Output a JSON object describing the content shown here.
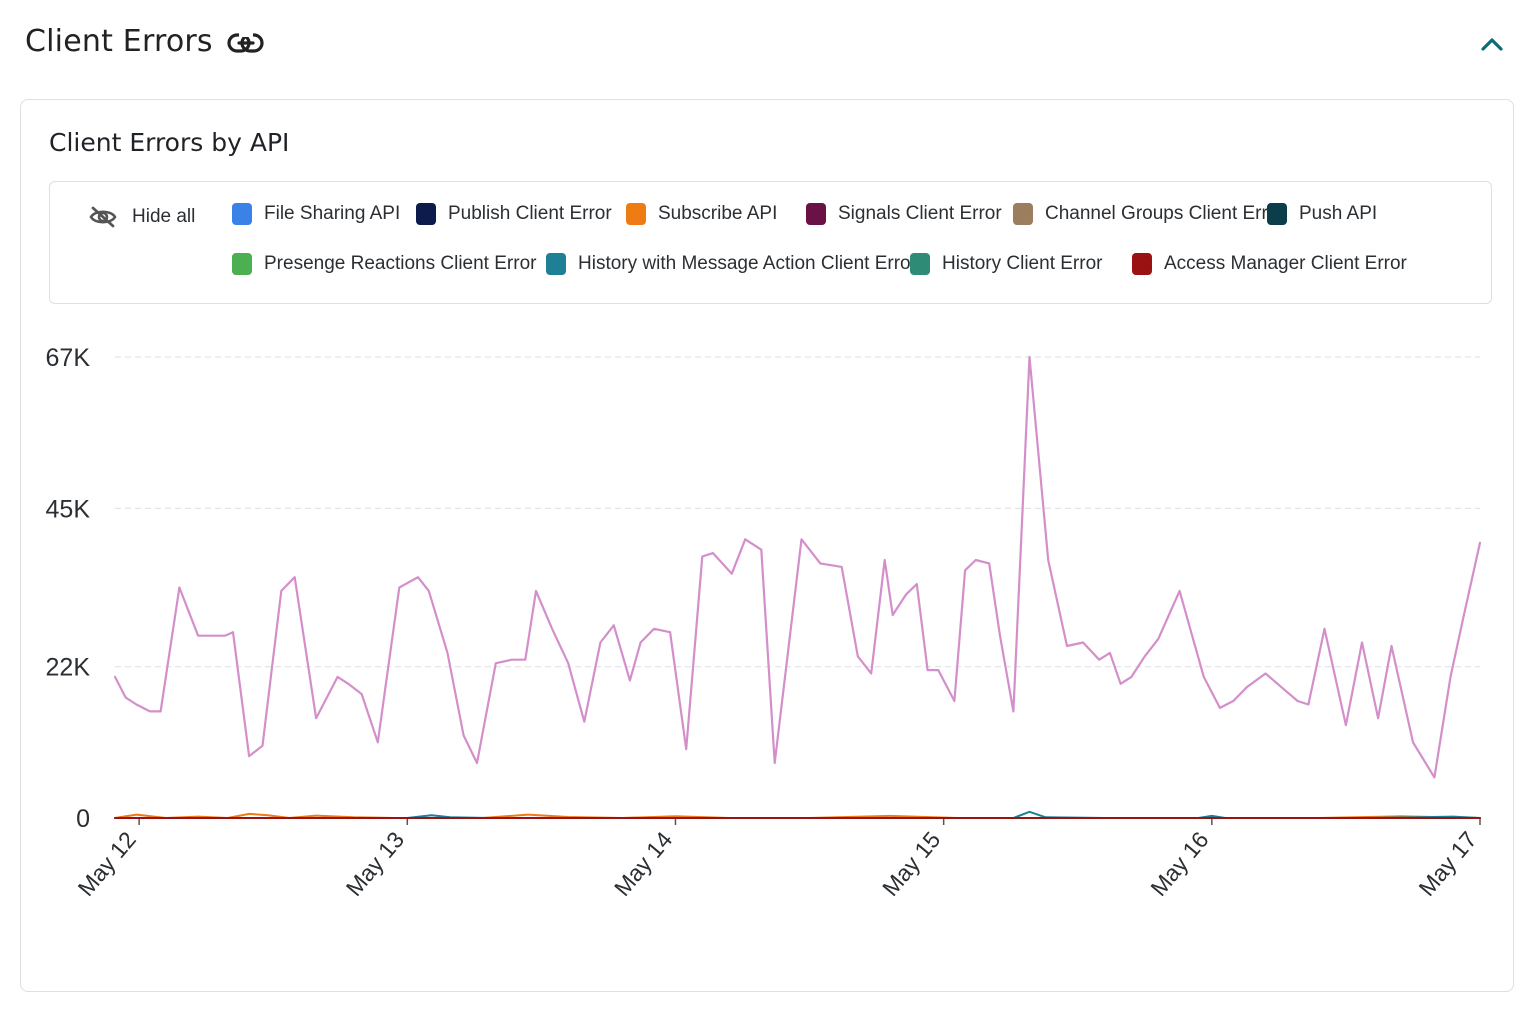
{
  "header": {
    "title": "Client Errors",
    "link_icon": "link-icon",
    "collapse_icon": "chevron-up-icon"
  },
  "card": {
    "title": "Client Errors by API"
  },
  "legend": {
    "hide_all_label": "Hide all",
    "hide_all_icon": "eye-off-icon",
    "items": [
      {
        "label": "File Sharing API",
        "color": "#3b82e8"
      },
      {
        "label": "Publish Client Error",
        "color": "#0d1b4c"
      },
      {
        "label": "Subscribe API",
        "color": "#ee7b14"
      },
      {
        "label": "Signals Client Error",
        "color": "#6a1145"
      },
      {
        "label": "Channel Groups Client Error",
        "color": "#9a7e5e"
      },
      {
        "label": "Push API",
        "color": "#0b3d4a"
      },
      {
        "label": "Presenge Reactions Client Error",
        "color": "#4caf50"
      },
      {
        "label": "History with Message Action Client Error",
        "color": "#1f7f95"
      },
      {
        "label": "History Client Error",
        "color": "#2e8b75"
      },
      {
        "label": "Access Manager Client Error",
        "color": "#9b1212"
      }
    ]
  },
  "chart_data": {
    "type": "line",
    "title": "Client Errors by API",
    "xlabel": "",
    "ylabel": "",
    "ylim": [
      0,
      67000
    ],
    "y_ticks": [
      {
        "value": 0,
        "label": "0"
      },
      {
        "value": 22000,
        "label": "22K"
      },
      {
        "value": 45000,
        "label": "45K"
      },
      {
        "value": 67000,
        "label": "67K"
      }
    ],
    "x_range": [
      11.91,
      17.0
    ],
    "x_ticks": [
      {
        "value": 12,
        "label": "May 12"
      },
      {
        "value": 13,
        "label": "May 13"
      },
      {
        "value": 14,
        "label": "May 14"
      },
      {
        "value": 15,
        "label": "May 15"
      },
      {
        "value": 16,
        "label": "May 16"
      },
      {
        "value": 17,
        "label": "May 17"
      }
    ],
    "grid": true,
    "legend_position": "top",
    "series": [
      {
        "color": "#d48fca",
        "x": [
          11.91,
          11.95,
          11.99,
          12.04,
          12.08,
          12.15,
          12.22,
          12.26,
          12.32,
          12.35,
          12.41,
          12.46,
          12.53,
          12.58,
          12.66,
          12.74,
          12.78,
          12.83,
          12.89,
          12.97,
          13.04,
          13.08,
          13.15,
          13.21,
          13.26,
          13.33,
          13.39,
          13.44,
          13.48,
          13.54,
          13.6,
          13.66,
          13.72,
          13.77,
          13.83,
          13.87,
          13.92,
          13.98,
          14.04,
          14.1,
          14.14,
          14.21,
          14.26,
          14.32,
          14.37,
          14.47,
          14.54,
          14.62,
          14.68,
          14.73,
          14.78,
          14.81,
          14.86,
          14.9,
          14.94,
          14.98,
          15.04,
          15.08,
          15.12,
          15.17,
          15.21,
          15.26,
          15.32,
          15.39,
          15.46,
          15.52,
          15.58,
          15.62,
          15.66,
          15.7,
          15.75,
          15.8,
          15.84,
          15.88,
          15.93,
          15.97,
          16.03,
          16.08,
          16.13,
          16.2,
          16.26,
          16.32,
          16.36,
          16.42,
          16.5,
          16.56,
          16.62,
          16.67,
          16.75,
          16.83,
          16.89,
          16.94,
          17.0
        ],
        "values": [
          20500,
          17500,
          16500,
          15500,
          15500,
          33500,
          26500,
          26500,
          26500,
          27000,
          9000,
          10500,
          33000,
          35000,
          14500,
          20500,
          19500,
          18000,
          11000,
          33500,
          35000,
          33000,
          24000,
          12000,
          8000,
          22500,
          23000,
          23000,
          33000,
          27500,
          22500,
          14000,
          25500,
          28000,
          20000,
          25500,
          27500,
          27000,
          10000,
          38000,
          38500,
          35500,
          40500,
          39000,
          8000,
          40500,
          37000,
          36500,
          23500,
          21000,
          37500,
          29500,
          32500,
          34000,
          21500,
          21500,
          17000,
          36000,
          37500,
          37000,
          26500,
          15500,
          67000,
          37500,
          25000,
          25500,
          23000,
          24000,
          19500,
          20500,
          23500,
          26000,
          29500,
          33000,
          26000,
          20500,
          16000,
          17000,
          19000,
          21000,
          19000,
          17000,
          16500,
          27500,
          13500,
          25500,
          14500,
          25000,
          11000,
          5900,
          20500,
          29500,
          40000
        ]
      },
      {
        "color": "#ee7b14",
        "x": [
          11.91,
          11.99,
          12.1,
          12.22,
          12.33,
          12.41,
          12.48,
          12.56,
          12.66,
          12.8,
          12.95,
          13.09,
          13.28,
          13.45,
          13.6,
          13.8,
          14.0,
          14.2,
          14.5,
          14.8,
          15.05,
          15.35,
          15.6,
          15.9,
          16.1,
          16.4,
          16.7,
          17.0
        ],
        "values": [
          0,
          500,
          0,
          200,
          0,
          600,
          400,
          0,
          350,
          100,
          0,
          0,
          0,
          500,
          150,
          0,
          250,
          0,
          0,
          300,
          0,
          0,
          0,
          0,
          0,
          0,
          250,
          0
        ]
      },
      {
        "color": "#1f7f95",
        "x": [
          11.91,
          12.5,
          13.0,
          13.09,
          13.16,
          13.3,
          14.0,
          14.5,
          15.0,
          15.26,
          15.32,
          15.38,
          15.6,
          15.95,
          16.0,
          16.05,
          16.2,
          16.6,
          16.9,
          17.0
        ],
        "values": [
          0,
          0,
          0,
          400,
          100,
          0,
          0,
          0,
          0,
          0,
          900,
          100,
          0,
          0,
          300,
          0,
          0,
          0,
          200,
          0
        ]
      },
      {
        "color": "#9b1212",
        "x": [
          11.91,
          17.0
        ],
        "values": [
          0,
          0
        ]
      }
    ]
  }
}
